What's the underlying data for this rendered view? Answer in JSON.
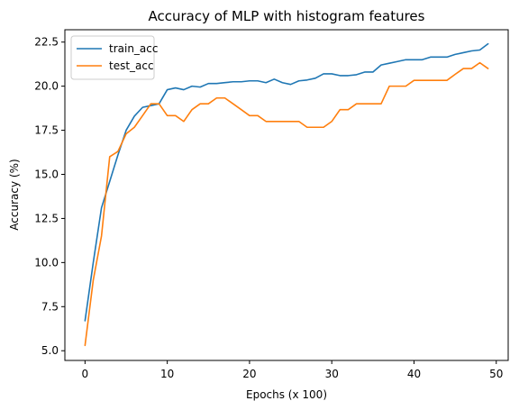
{
  "chart_data": {
    "type": "line",
    "title": "Accuracy of MLP with histogram features",
    "xlabel": "Epochs (x 100)",
    "ylabel": "Accuracy (%)",
    "xlim": [
      -2.45,
      51.45
    ],
    "ylim": [
      4.45,
      23.2
    ],
    "xticks": [
      0,
      10,
      20,
      30,
      40,
      50
    ],
    "yticks": [
      5.0,
      7.5,
      10.0,
      12.5,
      15.0,
      17.5,
      20.0,
      22.5
    ],
    "ytick_labels": [
      "5.0",
      "7.5",
      "10.0",
      "12.5",
      "15.0",
      "17.5",
      "20.0",
      "22.5"
    ],
    "legend_position": "upper-left",
    "grid": false,
    "series": [
      {
        "name": "train_acc",
        "color": "#1f77b4",
        "x": [
          0,
          1,
          2,
          3,
          4,
          5,
          6,
          7,
          8,
          9,
          10,
          11,
          12,
          13,
          14,
          15,
          16,
          17,
          18,
          19,
          20,
          21,
          22,
          23,
          24,
          25,
          26,
          27,
          28,
          29,
          30,
          31,
          32,
          33,
          34,
          35,
          36,
          37,
          38,
          39,
          40,
          41,
          42,
          43,
          44,
          45,
          46,
          47,
          48,
          49
        ],
        "values": [
          6.7,
          10.0,
          13.1,
          14.6,
          16.1,
          17.5,
          18.3,
          18.8,
          18.9,
          19.0,
          19.8,
          19.9,
          19.8,
          20.0,
          19.95,
          20.15,
          20.15,
          20.2,
          20.25,
          20.25,
          20.3,
          20.3,
          20.2,
          20.4,
          20.2,
          20.1,
          20.3,
          20.35,
          20.45,
          20.7,
          20.7,
          20.6,
          20.6,
          20.65,
          20.8,
          20.8,
          21.2,
          21.3,
          21.4,
          21.5,
          21.5,
          21.5,
          21.65,
          21.65,
          21.65,
          21.8,
          21.9,
          22.0,
          22.05,
          22.4
        ]
      },
      {
        "name": "test_acc",
        "color": "#ff7f0e",
        "x": [
          0,
          1,
          2,
          3,
          4,
          5,
          6,
          7,
          8,
          9,
          10,
          11,
          12,
          13,
          14,
          15,
          16,
          17,
          18,
          19,
          20,
          21,
          22,
          23,
          24,
          25,
          26,
          27,
          28,
          29,
          30,
          31,
          32,
          33,
          34,
          35,
          36,
          37,
          38,
          39,
          40,
          41,
          42,
          43,
          44,
          45,
          46,
          47,
          48,
          49
        ],
        "values": [
          5.3,
          9.0,
          11.5,
          16.0,
          16.3,
          17.3,
          17.67,
          18.33,
          19.0,
          19.0,
          18.33,
          18.33,
          18.0,
          18.67,
          19.0,
          19.0,
          19.33,
          19.33,
          19.0,
          18.67,
          18.33,
          18.33,
          18.0,
          18.0,
          18.0,
          18.0,
          18.0,
          17.67,
          17.67,
          17.67,
          18.0,
          18.67,
          18.67,
          19.0,
          19.0,
          19.0,
          19.0,
          20.0,
          20.0,
          20.0,
          20.33,
          20.33,
          20.33,
          20.33,
          20.33,
          20.67,
          21.0,
          21.0,
          21.33,
          21.0
        ]
      }
    ]
  }
}
